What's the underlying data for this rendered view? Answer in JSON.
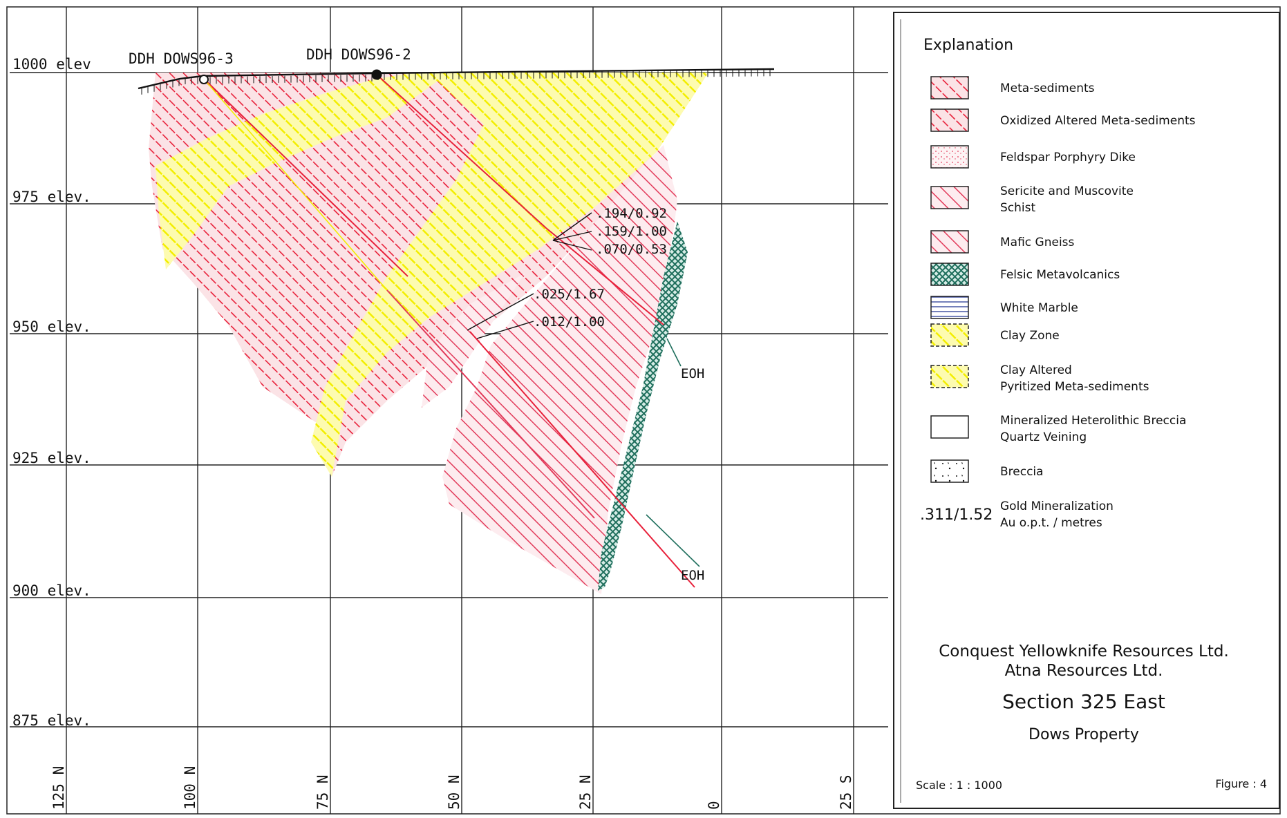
{
  "section": {
    "elevation_labels": [
      "1000 elev",
      "975 elev.",
      "950 elev.",
      "925 elev.",
      "900 elev.",
      "875 elev."
    ],
    "northing_labels": [
      "125 N",
      "100 N",
      "75 N",
      "50 N",
      "25 N",
      "0",
      "25 S"
    ],
    "drillholes": [
      {
        "name": "DDH DOWS96-3"
      },
      {
        "name": "DDH DOWS96-2"
      }
    ],
    "assays": [
      ".194/0.92",
      ".159/1.00",
      ".070/0.53",
      ".025/1.67",
      ".012/1.00"
    ],
    "end_of_hole": [
      "EOH",
      "EOH"
    ]
  },
  "legend": {
    "title": "Explanation",
    "items": [
      {
        "label": "Meta-sediments",
        "pattern": "meta-sed",
        "color": "#e8203a"
      },
      {
        "label": "Oxidized Altered Meta-sediments",
        "pattern": "oxidized",
        "color": "#e8203a"
      },
      {
        "label": "Feldspar Porphyry Dike",
        "pattern": "porphyry",
        "color": "#e23a5a"
      },
      {
        "label": "Sericite and Muscovite",
        "label2": "Schist",
        "pattern": "schist",
        "color": "#e23a5a"
      },
      {
        "label": "Mafic Gneiss",
        "pattern": "gneiss",
        "color": "#e8203a"
      },
      {
        "label": "Felsic Metavolcanics",
        "pattern": "felsic",
        "color": "#1e6e5c"
      },
      {
        "label": "White Marble",
        "pattern": "marble",
        "color": "#283c96"
      },
      {
        "label": "Clay Zone",
        "pattern": "clay",
        "color": "#f5f000"
      },
      {
        "label": "Clay Altered",
        "label2": "Pyritized Meta-sediments",
        "pattern": "clay-pyr",
        "color": "#f5f000"
      },
      {
        "label": "Mineralized Heterolithic Breccia",
        "label2": "Quartz Veining",
        "pattern": "hetero",
        "color": "#111111"
      },
      {
        "label": "Breccia",
        "pattern": "breccia",
        "color": "#111111"
      },
      {
        "label": "Gold Mineralization",
        "label2": "Au o.p.t. / metres",
        "sample": ".311/1.52",
        "pattern": "gold",
        "color": "#111111"
      }
    ]
  },
  "titleblock": {
    "company1": "Conquest Yellowknife Resources Ltd.",
    "company2": "Atna Resources Ltd.",
    "section": "Section 325 East",
    "property": "Dows Property",
    "scale": "Scale : 1 : 1000",
    "figure": "Figure : 4"
  }
}
